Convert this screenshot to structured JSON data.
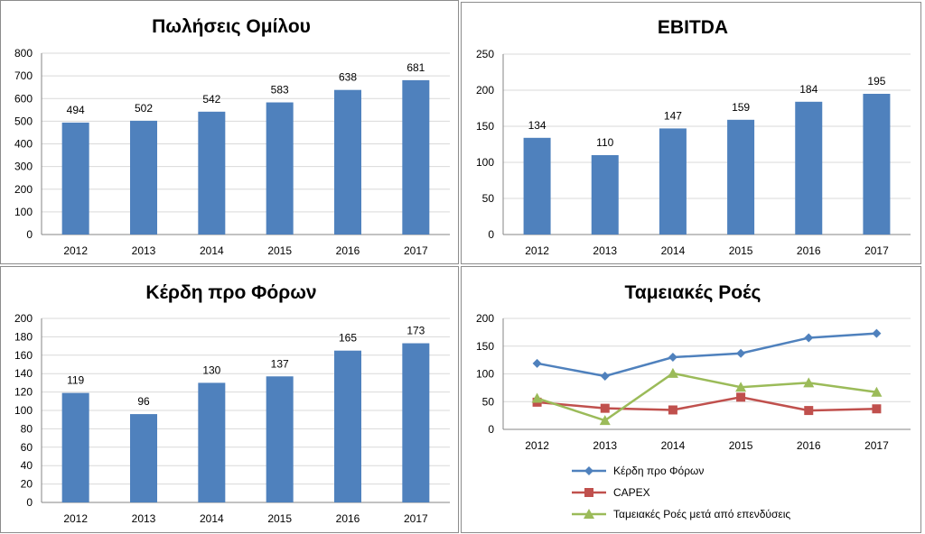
{
  "chart_data": [
    {
      "type": "bar",
      "title": "Πωλήσεις Ομίλου",
      "categories": [
        "2012",
        "2013",
        "2014",
        "2015",
        "2016",
        "2017"
      ],
      "values": [
        494,
        502,
        542,
        583,
        638,
        681
      ],
      "ylim": [
        0,
        800
      ],
      "yticks": [
        0,
        100,
        200,
        300,
        400,
        500,
        600,
        700,
        800
      ],
      "grid": true,
      "color": "#4f81bd"
    },
    {
      "type": "bar",
      "title": "EBITDA",
      "categories": [
        "2012",
        "2013",
        "2014",
        "2015",
        "2016",
        "2017"
      ],
      "values": [
        134,
        110,
        147,
        159,
        184,
        195
      ],
      "ylim": [
        0,
        250
      ],
      "yticks": [
        0,
        50,
        100,
        150,
        200,
        250
      ],
      "grid": true,
      "color": "#4f81bd"
    },
    {
      "type": "bar",
      "title": "Κέρδη προ Φόρων",
      "categories": [
        "2012",
        "2013",
        "2014",
        "2015",
        "2016",
        "2017"
      ],
      "values": [
        119,
        96,
        130,
        137,
        165,
        173
      ],
      "ylim": [
        0,
        200
      ],
      "yticks": [
        0,
        20,
        40,
        60,
        80,
        100,
        120,
        140,
        160,
        180,
        200
      ],
      "grid": true,
      "color": "#4f81bd"
    },
    {
      "type": "line",
      "title": "Ταμειακές Ροές",
      "categories": [
        "2012",
        "2013",
        "2014",
        "2015",
        "2016",
        "2017"
      ],
      "ylim": [
        0,
        200
      ],
      "yticks": [
        0,
        50,
        100,
        150,
        200
      ],
      "grid": true,
      "legend": "bottom",
      "series": [
        {
          "name": "Κέρδη προ Φόρων",
          "values": [
            119,
            96,
            130,
            137,
            165,
            173
          ],
          "color": "#4f81bd",
          "marker": "diamond"
        },
        {
          "name": "CAPEX",
          "values": [
            49,
            38,
            35,
            58,
            34,
            37
          ],
          "color": "#c0504d",
          "marker": "square"
        },
        {
          "name": "Ταμειακές Ροές μετά από επενδύσεις",
          "values": [
            56,
            16,
            101,
            76,
            84,
            67
          ],
          "color": "#9bbb59",
          "marker": "triangle"
        }
      ]
    }
  ]
}
